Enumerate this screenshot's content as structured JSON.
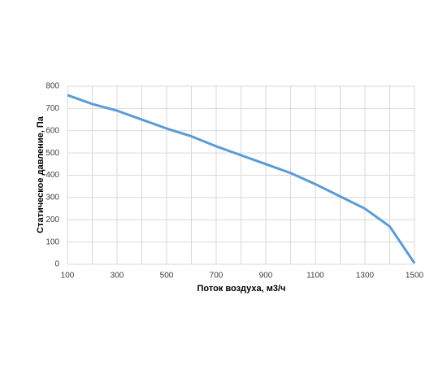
{
  "chart_data": {
    "type": "line",
    "x_label": "Поток воздуха, м3/ч",
    "y_label": "Статическое давление, Па",
    "x": [
      100,
      200,
      300,
      400,
      500,
      600,
      700,
      800,
      900,
      1000,
      1100,
      1200,
      1300,
      1400,
      1500
    ],
    "series": [
      {
        "color": "#5b9bd5",
        "values": [
          760,
          720,
          690,
          650,
          610,
          575,
          530,
          490,
          450,
          410,
          360,
          305,
          250,
          170,
          5
        ]
      }
    ],
    "xlim": [
      100,
      1500
    ],
    "xticks": [
      100,
      300,
      500,
      700,
      900,
      1100,
      1300,
      1500
    ],
    "xgrid": [
      200,
      400,
      600,
      800,
      1000,
      1200,
      1400
    ],
    "ylim": [
      0,
      800
    ],
    "yticks": [
      0,
      100,
      200,
      300,
      400,
      500,
      600,
      700,
      800
    ],
    "grid": true
  }
}
